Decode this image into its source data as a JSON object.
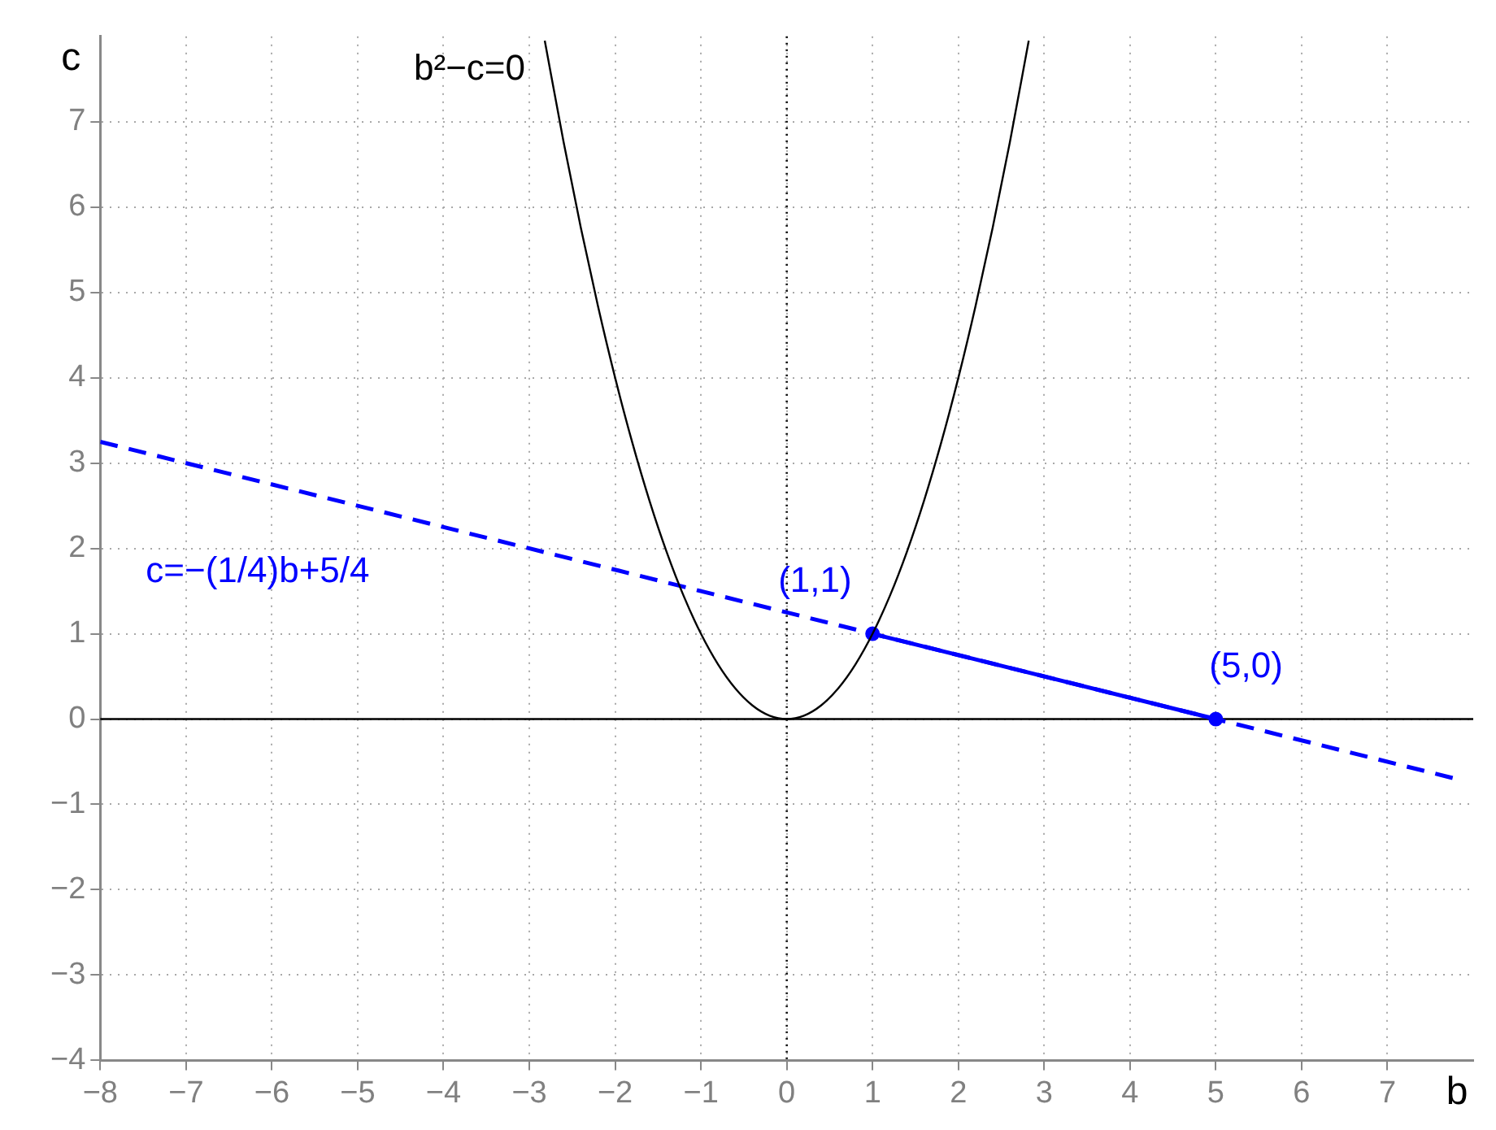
{
  "chart_data": {
    "type": "line",
    "xlabel": "b",
    "ylabel": "c",
    "xlim": [
      -8,
      8
    ],
    "ylim": [
      -4,
      8
    ],
    "xticks": [
      -8,
      -7,
      -6,
      -5,
      -4,
      -3,
      -2,
      -1,
      0,
      1,
      2,
      3,
      4,
      5,
      6,
      7
    ],
    "yticks": [
      -4,
      -3,
      -2,
      -1,
      0,
      1,
      2,
      3,
      4,
      5,
      6,
      7
    ],
    "grid": true,
    "ref_lines": [
      {
        "axis": "y",
        "value": 0,
        "color": "#000000",
        "line_style": "solid"
      },
      {
        "axis": "x",
        "value": 0,
        "color": "#000000",
        "line_style": "dotted"
      }
    ],
    "series": [
      {
        "color": "#000000",
        "line_style": "solid",
        "marker": "none",
        "x": [
          -2.82,
          -2.6,
          -2.4,
          -2.2,
          -2,
          -1.8,
          -1.6,
          -1.4,
          -1.2,
          -1,
          -0.8,
          -0.6,
          -0.4,
          -0.2,
          0,
          0.2,
          0.4,
          0.6,
          0.8,
          1,
          1.2,
          1.4,
          1.6,
          1.8,
          2,
          2.2,
          2.4,
          2.6,
          2.82
        ],
        "values": [
          7.95,
          6.76,
          5.76,
          4.84,
          4,
          3.24,
          2.56,
          1.96,
          1.44,
          1,
          0.64,
          0.36,
          0.16,
          0.04,
          0,
          0.04,
          0.16,
          0.36,
          0.64,
          1,
          1.44,
          1.96,
          2.56,
          3.24,
          4,
          4.84,
          5.76,
          6.76,
          7.95
        ]
      },
      {
        "color": "#0000ff",
        "line_style": "dashed",
        "marker": "none",
        "x": [
          -8,
          7.76
        ],
        "values": [
          3.25,
          -0.69
        ]
      },
      {
        "color": "#0000ff",
        "line_style": "solid",
        "marker": "none",
        "x": [
          1,
          5
        ],
        "values": [
          1,
          0
        ]
      },
      {
        "type": "scatter",
        "color": "#0000ff",
        "marker": "circle",
        "x": [
          1,
          5
        ],
        "values": [
          1,
          0
        ]
      }
    ],
    "annotations": [
      "b²−c=0",
      "c=−(1/4)b+5/4",
      {
        "text": "(1,1)",
        "x": 1,
        "y": 1
      },
      {
        "text": "(5,0)",
        "x": 5,
        "y": 0
      }
    ]
  }
}
